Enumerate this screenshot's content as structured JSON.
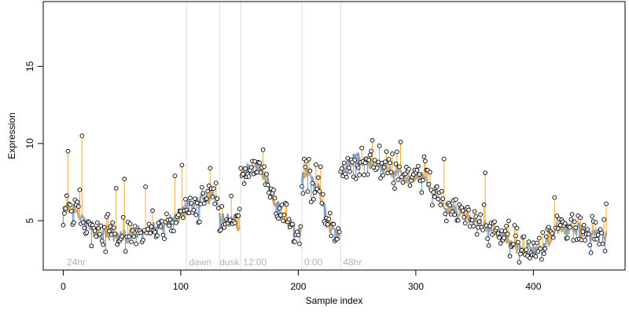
{
  "colors": {
    "above_line": "#f5a623",
    "below_line": "#5b8fd6",
    "fit_line": "#a6a6a6",
    "boundary_line": "#dcdcdc",
    "segment_text": "#b4b4b4",
    "point_stroke": "#000000",
    "point_fill": "#ffffff"
  },
  "chart_data": {
    "type": "scatter",
    "title": "",
    "xlabel": "Sample index",
    "ylabel": "Expression",
    "xlim": [
      -17,
      478
    ],
    "ylim": [
      1.8,
      19.2
    ],
    "xticks": [
      0,
      100,
      200,
      300,
      400
    ],
    "yticks": [
      5,
      10,
      15
    ],
    "grid": false,
    "legend": "none",
    "segment_boundaries": [
      105,
      133,
      151,
      203,
      236
    ],
    "segment_labels": [
      {
        "text": "24hr",
        "x": 3
      },
      {
        "text": "dawn",
        "x": 107
      },
      {
        "text": "dusk",
        "x": 133
      },
      {
        "text": "12:00",
        "x": 153
      },
      {
        "text": "0:00",
        "x": 205
      },
      {
        "text": "48hr",
        "x": 238
      }
    ],
    "fit_knots": [
      [
        0,
        5.6
      ],
      [
        8,
        5.9
      ],
      [
        12,
        5.5
      ],
      [
        20,
        4.9
      ],
      [
        28,
        4.3
      ],
      [
        40,
        4.1
      ],
      [
        55,
        4.0
      ],
      [
        70,
        4.4
      ],
      [
        85,
        4.8
      ],
      [
        100,
        5.3
      ],
      [
        105,
        5.9
      ],
      [
        120,
        6.4
      ],
      [
        130,
        6.8
      ],
      [
        133,
        5.2
      ],
      [
        140,
        5.0
      ],
      [
        150,
        4.8
      ],
      [
        151,
        8.1
      ],
      [
        158,
        8.4
      ],
      [
        166,
        8.6
      ],
      [
        172,
        7.8
      ],
      [
        180,
        6.2
      ],
      [
        188,
        5.2
      ],
      [
        196,
        4.6
      ],
      [
        202,
        4.2
      ],
      [
        203,
        7.8
      ],
      [
        210,
        8.0
      ],
      [
        218,
        7.1
      ],
      [
        224,
        5.0
      ],
      [
        230,
        4.2
      ],
      [
        235,
        3.8
      ],
      [
        236,
        8.2
      ],
      [
        245,
        8.9
      ],
      [
        255,
        9.0
      ],
      [
        262,
        8.6
      ],
      [
        275,
        8.5
      ],
      [
        290,
        7.9
      ],
      [
        305,
        7.8
      ],
      [
        315,
        7.0
      ],
      [
        325,
        6.0
      ],
      [
        335,
        5.6
      ],
      [
        345,
        5.3
      ],
      [
        355,
        4.8
      ],
      [
        365,
        4.5
      ],
      [
        375,
        4.0
      ],
      [
        385,
        3.3
      ],
      [
        395,
        3.1
      ],
      [
        405,
        3.0
      ],
      [
        412,
        3.6
      ],
      [
        420,
        4.5
      ],
      [
        432,
        4.6
      ],
      [
        445,
        4.3
      ],
      [
        455,
        4.0
      ],
      [
        463,
        4.0
      ]
    ],
    "outliers": [
      [
        4,
        9.5
      ],
      [
        14,
        7.0
      ],
      [
        16,
        10.5
      ],
      [
        45,
        7.1
      ],
      [
        52,
        7.7
      ],
      [
        70,
        7.2
      ],
      [
        95,
        7.9
      ],
      [
        101,
        8.6
      ],
      [
        125,
        8.4
      ],
      [
        143,
        6.6
      ],
      [
        170,
        9.6
      ],
      [
        205,
        9.0
      ],
      [
        219,
        8.5
      ],
      [
        263,
        10.2
      ],
      [
        287,
        10.1
      ],
      [
        324,
        9.0
      ],
      [
        359,
        8.1
      ],
      [
        418,
        6.5
      ],
      [
        462,
        6.1
      ]
    ],
    "n_points": 463,
    "seed": 20240611
  }
}
